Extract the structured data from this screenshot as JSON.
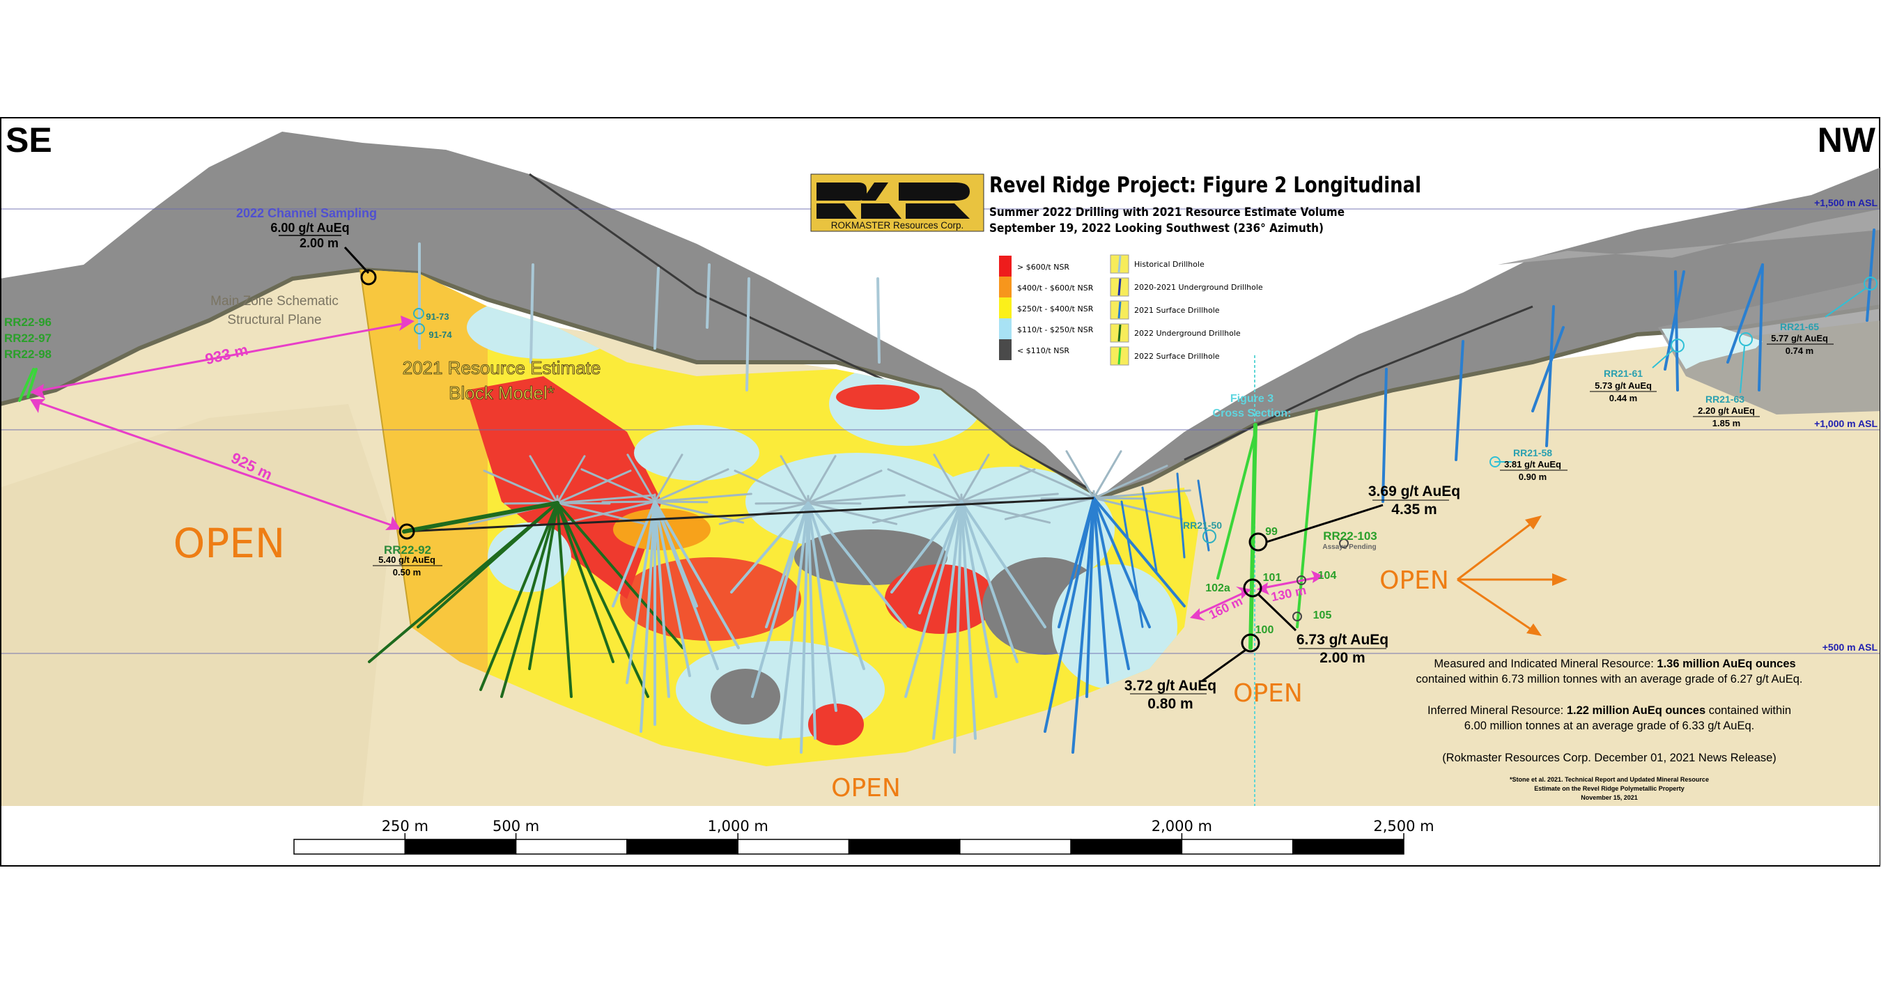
{
  "directions": {
    "left": "SE",
    "right": "NW"
  },
  "logo": {
    "company": "ROKMASTER Resources Corp."
  },
  "title": {
    "main": "Revel Ridge Project: Figure 2 Longitudinal",
    "subtitle1": "Summer 2022 Drilling with 2021 Resource Estimate Volume",
    "subtitle2": "September 19, 2022   Looking Southwest (236° Azimuth)"
  },
  "legend": {
    "grades": [
      {
        "label": "> $600/t NSR",
        "color": "#ee1c1c"
      },
      {
        "label": "$400/t - $600/t NSR",
        "color": "#f7961c"
      },
      {
        "label": "$250/t - $400/t NSR",
        "color": "#fbf01a"
      },
      {
        "label": "$110/t - $250/t NSR",
        "color": "#a8e2f4"
      },
      {
        "label": "< $110/t NSR",
        "color": "#4a4a4a"
      }
    ],
    "drillholes": [
      {
        "label": "Historical Drillhole",
        "color": "#9fc6d6"
      },
      {
        "label": "2020-2021 Underground Drillhole",
        "color": "#1c2fa8"
      },
      {
        "label": "2021 Surface Drillhole",
        "color": "#2a7fd0"
      },
      {
        "label": "2022 Underground Drillhole",
        "color": "#1e6b1e"
      },
      {
        "label": "2022 Surface Drillhole",
        "color": "#3ad63a"
      }
    ]
  },
  "elevations": [
    "+1,500 m ASL",
    "+1,000 m ASL",
    "+500 m ASL"
  ],
  "labels": {
    "channel": {
      "title": "2022 Channel Sampling",
      "grade": "6.00 g/t AuEq",
      "width": "2.00 m"
    },
    "main_zone": [
      "Main Zone Schematic",
      "Structural Plane"
    ],
    "left_holes": [
      "RR22-96",
      "RR22-97",
      "RR22-98"
    ],
    "dist_933": "933 m",
    "dist_925": "925 m",
    "hist_holes": [
      "91-73",
      "91-74"
    ],
    "block_model": [
      "2021 Resource Estimate",
      "Block Model*"
    ],
    "open": "OPEN",
    "rr22_92": {
      "name": "RR22-92",
      "grade": "5.40 g/t AuEq",
      "width": "0.50 m"
    },
    "fig3": [
      "Figure 3",
      "Cross Section:"
    ],
    "int_99": {
      "grade": "3.69 g/t AuEq",
      "width": "4.35 m"
    },
    "int_101": {
      "grade": "6.73 g/t AuEq",
      "width": "2.00 m"
    },
    "int_100": {
      "grade": "3.72 g/t AuEq",
      "width": "0.80 m"
    },
    "hole_ids": {
      "h99": "99",
      "h101": "101",
      "h102a": "102a",
      "h104": "104",
      "h105": "105",
      "h100": "100"
    },
    "rr22_103": {
      "name": "RR22-103",
      "note": "Assays Pending"
    },
    "dist_130": "130 m",
    "dist_160": "160 m",
    "rr21_50": "RR21-50",
    "rr21_58": {
      "name": "RR21-58",
      "grade": "3.81 g/t AuEq",
      "width": "0.90 m"
    },
    "rr21_61": {
      "name": "RR21-61",
      "grade": "5.73 g/t AuEq",
      "width": "0.44 m"
    },
    "rr21_63": {
      "name": "RR21-63",
      "grade": "2.20 g/t AuEq",
      "width": "1.85 m"
    },
    "rr21_65": {
      "name": "RR21-65",
      "grade": "5.77 g/t AuEq",
      "width": "0.74 m"
    }
  },
  "resource": {
    "mi_a": "Measured and Indicated Mineral Resource: ",
    "mi_b": "1.36 million AuEq ounces",
    "mi_c": "contained within 6.73 million tonnes with an average grade of 6.27 g/t AuEq.",
    "inf_a": "Inferred Mineral Resource: ",
    "inf_b": "1.22 million AuEq ounces",
    "inf_c": "  contained within",
    "inf_d": "6.00 million tonnes at an average grade of 6.33 g/t AuEq.",
    "source": "(Rokmaster Resources Corp. December 01, 2021 News Release)",
    "footnote": [
      "*Stone et al. 2021. Technical Report and Updated Mineral Resource",
      "Estimate on the Revel Ridge Polymetallic Property",
      "November 15, 2021"
    ]
  },
  "scale_bar": {
    "ticks": [
      "250 m",
      "500 m",
      "1,000 m",
      "2,000 m",
      "2,500 m"
    ]
  },
  "colors": {
    "open": "#ee7d14",
    "distance": "#e83ec8",
    "tan": "#efe3bf",
    "rock": "#8a8a8a"
  }
}
